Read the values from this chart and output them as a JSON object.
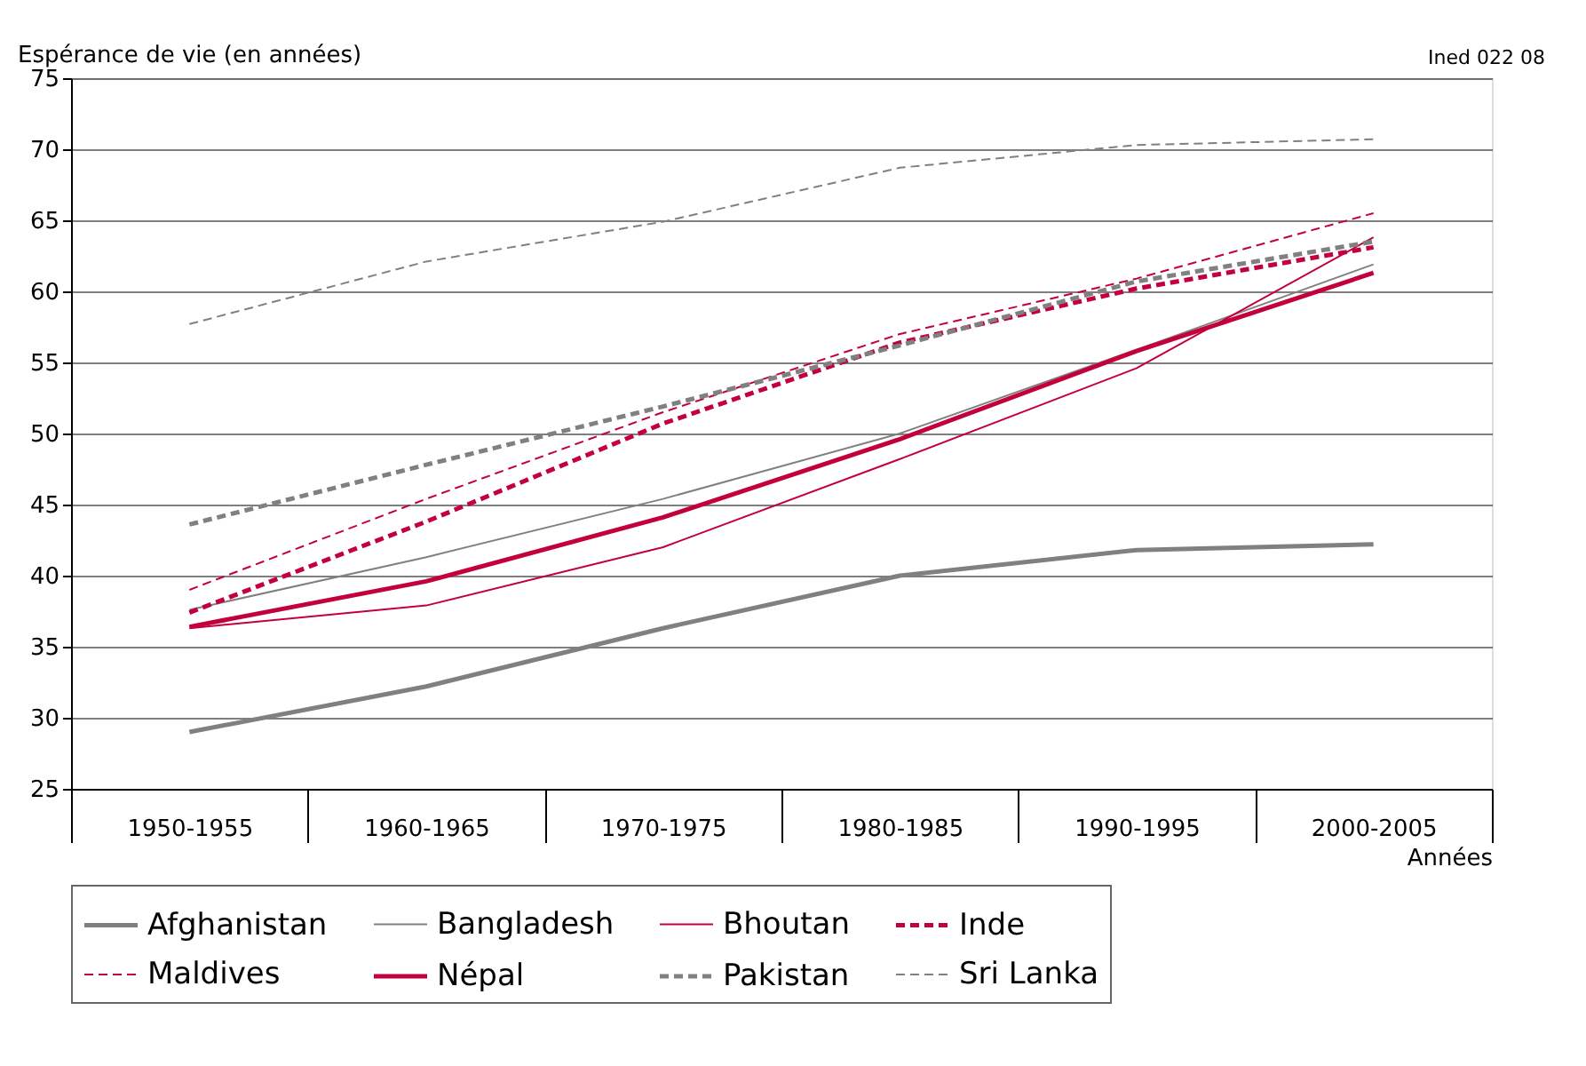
{
  "chart_data": {
    "type": "line",
    "ylabel": "Espérance de vie (en années)",
    "xlabel": "Années",
    "annotations": [
      "Ined 022 08"
    ],
    "categories": [
      "1950-1955",
      "1960-1965",
      "1970-1975",
      "1980-1985",
      "1990-1995",
      "2000-2005"
    ],
    "ylim": [
      25,
      75
    ],
    "yticks": [
      25,
      30,
      35,
      40,
      45,
      50,
      55,
      60,
      65,
      70,
      75
    ],
    "grid": "y",
    "legend": "bottom",
    "marker": "none",
    "series": [
      {
        "name": "Afghanistan",
        "color": "#808080",
        "line_style": "solid",
        "values": [
          29.0,
          32.2,
          36.3,
          40.0,
          41.8,
          42.2
        ]
      },
      {
        "name": "Bangladesh",
        "color": "#808080",
        "line_style": "solid",
        "values": [
          37.6,
          41.3,
          45.4,
          50.0,
          55.9,
          61.9
        ]
      },
      {
        "name": "Bhoutan",
        "color": "#c4003c",
        "line_style": "solid",
        "values": [
          36.3,
          37.9,
          42.0,
          48.2,
          54.6,
          63.8
        ]
      },
      {
        "name": "Inde",
        "color": "#c4003c",
        "line_style": "dashed",
        "values": [
          37.4,
          43.8,
          50.7,
          56.4,
          60.2,
          63.1
        ]
      },
      {
        "name": "Maldives",
        "color": "#c4003c",
        "line_style": "dashed",
        "values": [
          39.0,
          45.4,
          51.5,
          57.0,
          60.9,
          65.5
        ]
      },
      {
        "name": "Népal",
        "color": "#c4003c",
        "line_style": "solid",
        "values": [
          36.4,
          39.6,
          44.1,
          49.6,
          55.8,
          61.3
        ]
      },
      {
        "name": "Pakistan",
        "color": "#808080",
        "line_style": "dashed",
        "values": [
          43.6,
          47.8,
          51.9,
          56.2,
          60.7,
          63.5
        ]
      },
      {
        "name": "Sri Lanka",
        "color": "#808080",
        "line_style": "dashed",
        "values": [
          57.7,
          62.1,
          64.9,
          68.7,
          70.3,
          70.7
        ]
      }
    ]
  }
}
